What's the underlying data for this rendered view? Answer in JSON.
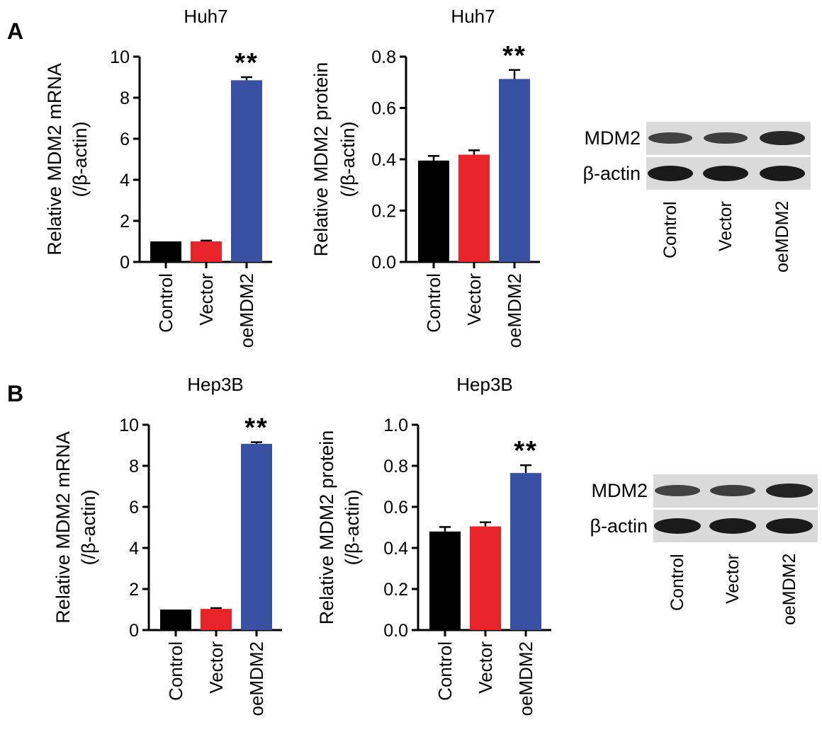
{
  "panels": [
    {
      "letter": "A"
    },
    {
      "letter": "B"
    }
  ],
  "chart_data": [
    {
      "panel": "A",
      "type": "bar",
      "title": "Huh7",
      "ylabel": [
        "Relative MDM2 mRNA",
        "(/β-actin)"
      ],
      "categories": [
        "Control",
        "Vector",
        "oeMDM2"
      ],
      "values": [
        1.0,
        1.0,
        8.85
      ],
      "errors": [
        0,
        0.04,
        0.15
      ],
      "colors": [
        "#000000",
        "#e8232a",
        "#3851a3"
      ],
      "ylim": [
        0,
        10
      ],
      "yticks": [
        "0",
        "2",
        "4",
        "6",
        "8",
        "10"
      ],
      "significance": [
        "",
        "",
        "**"
      ]
    },
    {
      "panel": "A",
      "type": "bar",
      "title": "Huh7",
      "ylabel": [
        "Relative MDM2 protein",
        "(/β-actin)"
      ],
      "categories": [
        "Control",
        "Vector",
        "oeMDM2"
      ],
      "values": [
        0.395,
        0.418,
        0.713
      ],
      "errors": [
        0.018,
        0.017,
        0.035
      ],
      "colors": [
        "#000000",
        "#e8232a",
        "#3851a3"
      ],
      "ylim": [
        0,
        0.8
      ],
      "yticks": [
        "0.0",
        "0.2",
        "0.4",
        "0.6",
        "0.8"
      ],
      "significance": [
        "",
        "",
        "**"
      ]
    },
    {
      "panel": "B",
      "type": "bar",
      "title": "Hep3B",
      "ylabel": [
        "Relative MDM2 mRNA",
        "(/β-actin)"
      ],
      "categories": [
        "Control",
        "Vector",
        "oeMDM2"
      ],
      "values": [
        1.0,
        1.03,
        9.07
      ],
      "errors": [
        0,
        0.04,
        0.08
      ],
      "colors": [
        "#000000",
        "#e8232a",
        "#3851a3"
      ],
      "ylim": [
        0,
        10
      ],
      "yticks": [
        "0",
        "2",
        "4",
        "6",
        "8",
        "10"
      ],
      "significance": [
        "",
        "",
        "**"
      ]
    },
    {
      "panel": "B",
      "type": "bar",
      "title": "Hep3B",
      "ylabel": [
        "Relative MDM2 protein",
        "(/β-actin)"
      ],
      "categories": [
        "Control",
        "Vector",
        "oeMDM2"
      ],
      "values": [
        0.48,
        0.505,
        0.765
      ],
      "errors": [
        0.022,
        0.02,
        0.038
      ],
      "colors": [
        "#000000",
        "#e8232a",
        "#3851a3"
      ],
      "ylim": [
        0,
        1.0
      ],
      "yticks": [
        "0.0",
        "0.2",
        "0.4",
        "0.6",
        "0.8",
        "1.0"
      ],
      "significance": [
        "",
        "",
        "**"
      ]
    }
  ],
  "blots": [
    {
      "panel": "A",
      "rows": [
        {
          "label": "MDM2",
          "intensity": [
            0.55,
            0.6,
            0.85
          ]
        },
        {
          "label": "β-actin",
          "intensity": [
            1.0,
            1.0,
            1.0
          ]
        }
      ],
      "lanes": [
        "Control",
        "Vector",
        "oeMDM2"
      ]
    },
    {
      "panel": "B",
      "rows": [
        {
          "label": "MDM2",
          "intensity": [
            0.55,
            0.6,
            0.9
          ]
        },
        {
          "label": "β-actin",
          "intensity": [
            1.0,
            1.0,
            1.0
          ]
        }
      ],
      "lanes": [
        "Control",
        "Vector",
        "oeMDM2"
      ]
    }
  ]
}
